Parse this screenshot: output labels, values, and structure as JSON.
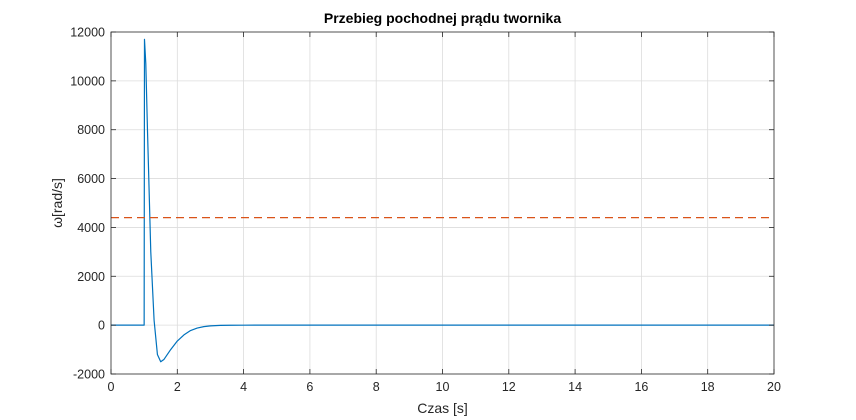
{
  "chart_data": {
    "type": "line",
    "title": "Przebieg pochodnej prądu twornika",
    "xlabel": "Czas [s]",
    "ylabel": "ω[rad/s]",
    "xlim": [
      0,
      20
    ],
    "ylim": [
      -2000,
      12000
    ],
    "xticks": [
      0,
      2,
      4,
      6,
      8,
      10,
      12,
      14,
      16,
      18,
      20
    ],
    "yticks": [
      -2000,
      0,
      2000,
      4000,
      6000,
      8000,
      10000,
      12000
    ],
    "grid": true,
    "series": [
      {
        "color": "#0072BD",
        "style": "solid",
        "x": [
          0,
          1.0,
          1.01,
          1.05,
          1.1,
          1.2,
          1.3,
          1.4,
          1.5,
          1.6,
          1.8,
          2.0,
          2.2,
          2.4,
          2.6,
          2.8,
          3.0,
          3.3,
          3.6,
          4.0,
          4.5,
          5.0,
          6.0,
          8.0,
          10.0,
          12.0,
          14.0,
          16.0,
          18.0,
          20.0
        ],
        "y": [
          0,
          0,
          11700,
          10700,
          8000,
          3000,
          200,
          -1200,
          -1500,
          -1400,
          -1000,
          -650,
          -400,
          -220,
          -120,
          -60,
          -30,
          -10,
          -3,
          -1,
          0,
          0,
          0,
          0,
          0,
          0,
          0,
          0,
          0,
          0
        ]
      },
      {
        "color": "#D95319",
        "style": "dashed",
        "x": [
          0,
          20
        ],
        "y": [
          4400,
          4400
        ]
      }
    ]
  }
}
